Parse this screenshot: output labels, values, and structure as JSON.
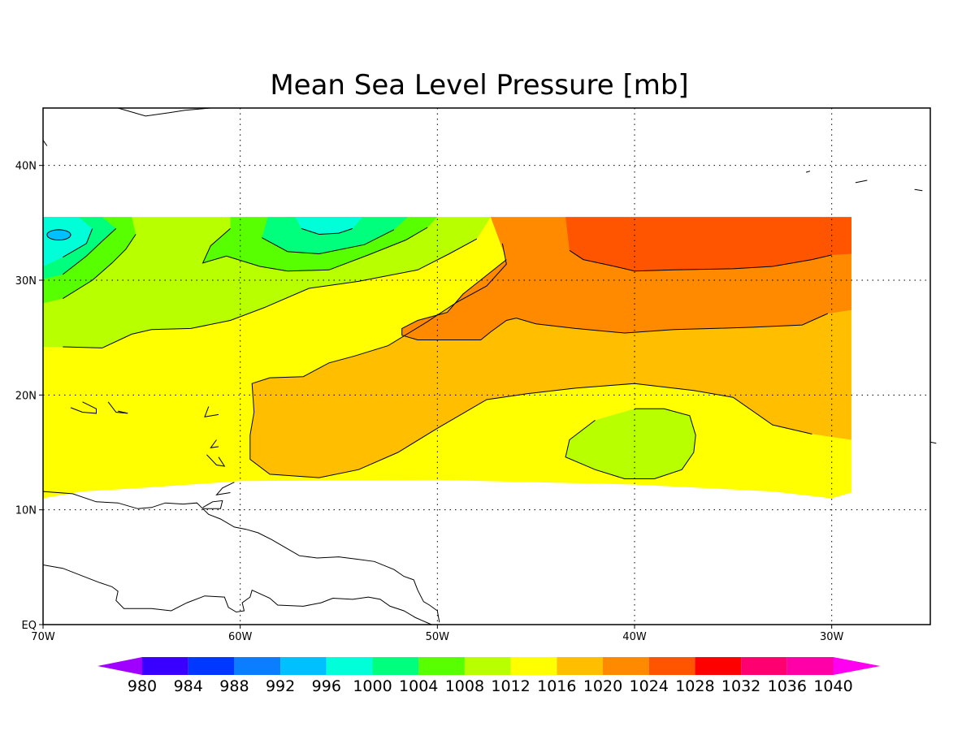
{
  "chart_data": {
    "type": "heatmap",
    "title": "Mean Sea Level Pressure [mb]",
    "xlabel": "",
    "ylabel": "",
    "units": "mb",
    "xlim": [
      -70,
      -25
    ],
    "ylim": [
      0,
      45
    ],
    "x_ticks": [
      -70,
      -60,
      -50,
      -40,
      -30
    ],
    "x_tick_labels": [
      "70W",
      "60W",
      "50W",
      "40W",
      "30W"
    ],
    "y_ticks": [
      0,
      10,
      20,
      30,
      40
    ],
    "y_tick_labels": [
      "EQ",
      "10N",
      "20N",
      "30N",
      "40N"
    ],
    "grid": true,
    "data_extent": {
      "lon": [
        -70,
        -29
      ],
      "lat": [
        11,
        35.5
      ]
    },
    "colorbar": {
      "levels": [
        980,
        984,
        988,
        992,
        996,
        1000,
        1004,
        1008,
        1012,
        1016,
        1020,
        1024,
        1028,
        1032,
        1036,
        1040
      ],
      "labels": [
        "980",
        "984",
        "988",
        "992",
        "996",
        "1000",
        "1004",
        "1008",
        "1012",
        "1016",
        "1020",
        "1024",
        "1028",
        "1032",
        "1036",
        "1040"
      ],
      "colors": [
        "#a000ff",
        "#3a00ff",
        "#0038ff",
        "#0a7eff",
        "#00c0ff",
        "#00ffd8",
        "#00ff7c",
        "#58ff00",
        "#b8ff00",
        "#ffff00",
        "#ffbe00",
        "#ff8a00",
        "#ff5400",
        "#ff0000",
        "#ff0070",
        "#ff00a8",
        "#ff00f0"
      ],
      "extend": "both"
    },
    "regions": [
      {
        "value": "1012-1016",
        "color": "#ffff00",
        "lon": [
          -70,
          -29
        ],
        "lat": [
          11,
          35.5
        ]
      },
      {
        "value": "1016-1020",
        "color": "#ffbe00",
        "lon": [
          -59,
          -29
        ],
        "lat": [
          12.5,
          35.5
        ]
      },
      {
        "value": "1020-1024",
        "color": "#ff8a00",
        "lon": [
          -52,
          -29
        ],
        "lat": [
          24.8,
          35.5
        ]
      },
      {
        "value": "1024-1028",
        "color": "#ff5400",
        "lon": [
          -43.5,
          -29
        ],
        "lat": [
          30.8,
          35.5
        ]
      },
      {
        "value": "1008-1012",
        "color": "#b8ff00",
        "lon": [
          -70,
          -47
        ],
        "lat": [
          24.5,
          35.5
        ]
      },
      {
        "value": "1008-1012",
        "color": "#b8ff00",
        "lon": [
          -43.5,
          -36.9
        ],
        "lat": [
          12.7,
          18.8
        ]
      },
      {
        "value": "1004-1008",
        "color": "#58ff00",
        "lon": [
          -70,
          -49
        ],
        "lat": [
          28,
          35.5
        ]
      },
      {
        "value": "1000-1004",
        "color": "#00ff7c",
        "lon": [
          -70,
          -51
        ],
        "lat": [
          29.8,
          35.5
        ]
      },
      {
        "value": "996-1000",
        "color": "#00ffd8",
        "lon": [
          -70,
          -53.7
        ],
        "lat": [
          31.2,
          35.5
        ]
      },
      {
        "value": "992-996",
        "color": "#00c0ff",
        "lon": [
          -70,
          -68.8
        ],
        "lat": [
          33.5,
          34.4
        ]
      }
    ]
  }
}
